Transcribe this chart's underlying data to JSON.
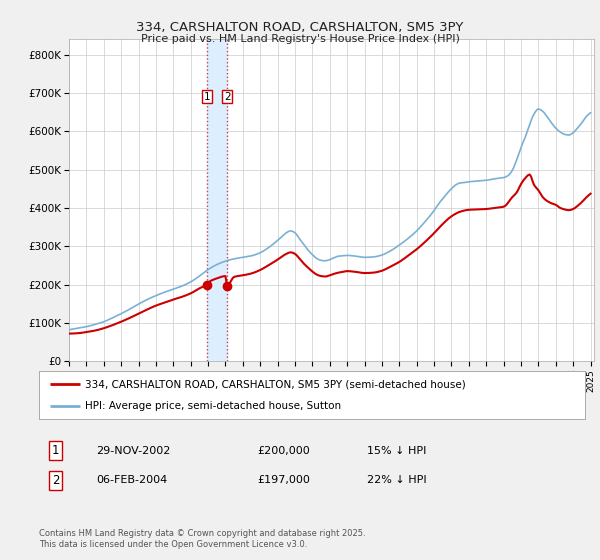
{
  "title": "334, CARSHALTON ROAD, CARSHALTON, SM5 3PY",
  "subtitle": "Price paid vs. HM Land Registry's House Price Index (HPI)",
  "legend_line1": "334, CARSHALTON ROAD, CARSHALTON, SM5 3PY (semi-detached house)",
  "legend_line2": "HPI: Average price, semi-detached house, Sutton",
  "footer": "Contains HM Land Registry data © Crown copyright and database right 2025.\nThis data is licensed under the Open Government Licence v3.0.",
  "transaction1_date_str": "29-NOV-2002",
  "transaction1_price_str": "£200,000",
  "transaction1_hpi_str": "15% ↓ HPI",
  "transaction1_date_num": 2002.917,
  "transaction1_price_val": 200000,
  "transaction2_date_str": "06-FEB-2004",
  "transaction2_price_str": "£197,000",
  "transaction2_hpi_str": "22% ↓ HPI",
  "transaction2_date_num": 2004.1,
  "transaction2_price_val": 197000,
  "hpi_color": "#7ab0d4",
  "price_color": "#cc0000",
  "vband_color": "#ddeeff",
  "vline_color": "#cc4444",
  "background_color": "#f0f0f0",
  "plot_bg_color": "#ffffff",
  "grid_color": "#cccccc",
  "ylim": [
    0,
    840000
  ],
  "yticks": [
    0,
    100000,
    200000,
    300000,
    400000,
    500000,
    600000,
    700000,
    800000
  ],
  "ytick_labels": [
    "£0",
    "£100K",
    "£200K",
    "£300K",
    "£400K",
    "£500K",
    "£600K",
    "£700K",
    "£800K"
  ]
}
